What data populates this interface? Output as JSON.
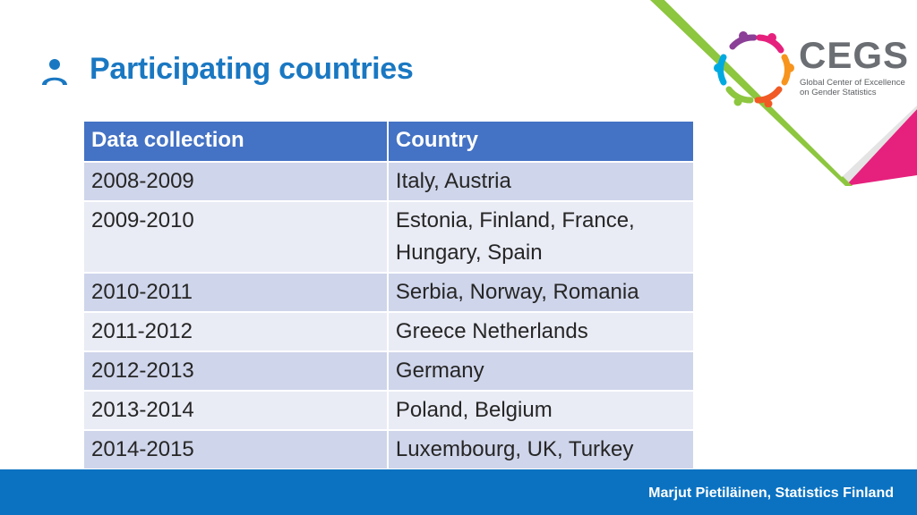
{
  "slide": {
    "title": "Participating countries",
    "footer": "Marjut Pietiläinen, Statistics Finland"
  },
  "logo": {
    "wordmark": "CEGS",
    "subtitle_line1": "Global Center of Excellence",
    "subtitle_line2": "on Gender Statistics"
  },
  "table": {
    "headers": [
      "Data collection",
      "Country"
    ],
    "rows": [
      [
        "2008-2009",
        "Italy, Austria"
      ],
      [
        "2009-2010",
        "Estonia, Finland, France, Hungary, Spain"
      ],
      [
        "2010-2011",
        "Serbia, Norway, Romania"
      ],
      [
        "2011-2012",
        "Greece Netherlands"
      ],
      [
        "2012-2013",
        "Germany"
      ],
      [
        "2013-2014",
        "Poland, Belgium"
      ],
      [
        "2014-2015",
        "Luxembourg, UK, Turkey"
      ]
    ]
  },
  "colors": {
    "title": "#1a78c2",
    "header_fill": "#4472c4",
    "row_dark": "#cfd5ea",
    "row_light": "#e9ebf5",
    "footer_bar": "#0a72c1",
    "accent_green": "#8dc63f",
    "accent_magenta": "#e6217d"
  },
  "icons": {
    "title_icon": "person-icon",
    "logo_mark": "people-circle-icon"
  }
}
